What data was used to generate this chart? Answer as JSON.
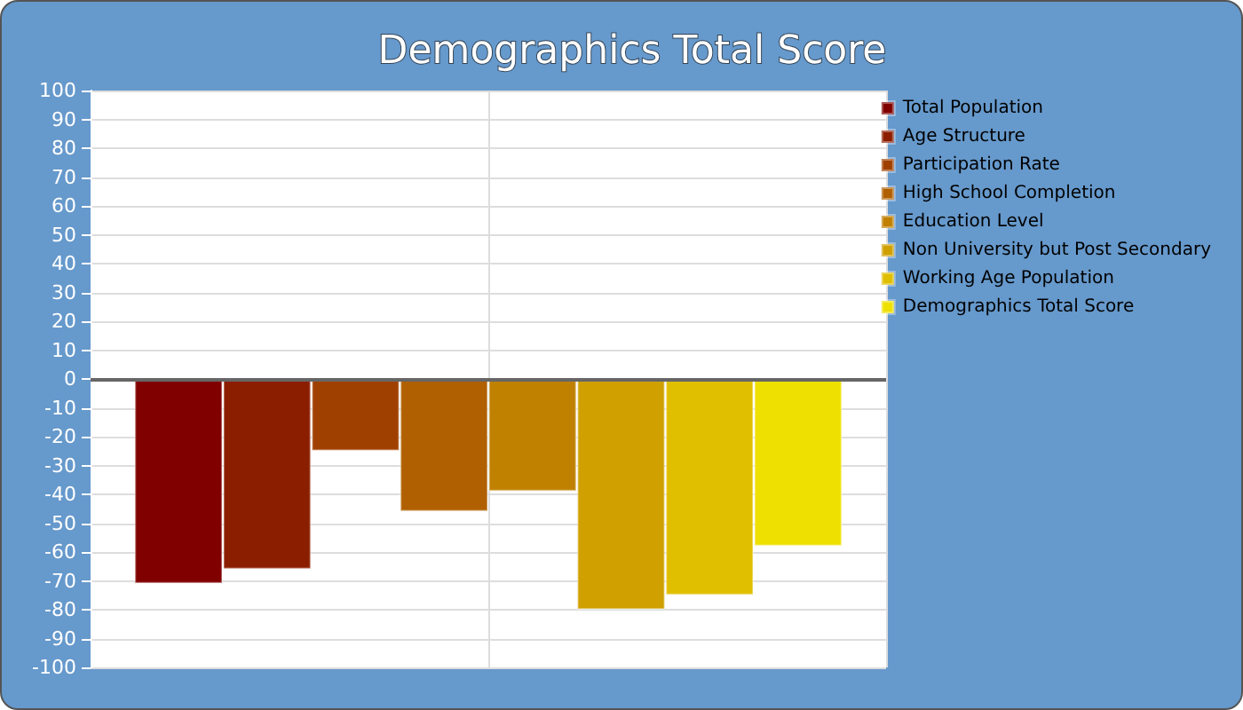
{
  "chart_data": {
    "type": "bar",
    "title": "Demographics Total Score",
    "categories": [
      null
    ],
    "series": [
      {
        "name": "Total Population",
        "color": "#800000",
        "values": [
          -71
        ]
      },
      {
        "name": "Age Structure",
        "color": "#8c1e00",
        "values": [
          -66
        ]
      },
      {
        "name": "Participation Rate",
        "color": "#a04000",
        "values": [
          -25
        ]
      },
      {
        "name": "High School Completion",
        "color": "#b06000",
        "values": [
          -46
        ]
      },
      {
        "name": "Education Level",
        "color": "#c08000",
        "values": [
          -39
        ]
      },
      {
        "name": "Non University but Post Secondary",
        "color": "#d0a000",
        "values": [
          -80
        ]
      },
      {
        "name": "Working Age Population",
        "color": "#e0be00",
        "values": [
          -75
        ]
      },
      {
        "name": "Demographics Total Score",
        "color": "#eee000",
        "values": [
          -58
        ]
      }
    ],
    "ylim": [
      -100,
      100
    ],
    "yticks": [
      -100,
      -90,
      -80,
      -70,
      -60,
      -50,
      -40,
      -30,
      -20,
      -10,
      0,
      10,
      20,
      30,
      40,
      50,
      60,
      70,
      80,
      90,
      100
    ],
    "grid": true,
    "legend": "right"
  }
}
